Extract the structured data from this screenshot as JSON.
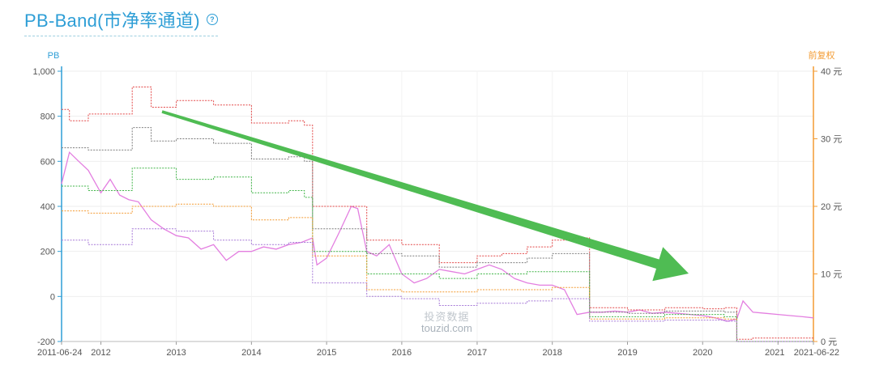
{
  "title": "PB-Band(市净率通道)",
  "help_icon": "question-circle-icon",
  "watermark": {
    "line1": "投资数据",
    "line2": "touzid.com"
  },
  "colors": {
    "left_axis": "#2e9ed6",
    "right_axis": "#f39c34",
    "pb_line": "#e37ee0",
    "band_red": "#e34a4a",
    "band_gray": "#7e7e7e",
    "band_green": "#42b64a",
    "band_orange": "#f39c34",
    "band_purple": "#a77ad8",
    "arrow": "#46b84a"
  },
  "chart_data": {
    "type": "line",
    "title": "PB-Band(市净率通道)",
    "y_left": {
      "label": "PB",
      "range": [
        -200,
        1000
      ],
      "ticks": [
        "-200",
        "0",
        "200",
        "400",
        "600",
        "800",
        "1,000"
      ]
    },
    "y_right": {
      "label": "前复权",
      "range": [
        0,
        40
      ],
      "ticks": [
        "0 元",
        "10 元",
        "20 元",
        "30 元",
        "40 元"
      ]
    },
    "x_range": [
      "2011-06-24",
      "2021-06-22"
    ],
    "x_ticks": [
      "2011-06-24",
      "2012",
      "2013",
      "2014",
      "2015",
      "2016",
      "2017",
      "2018",
      "2019",
      "2020",
      "2021",
      "2021-06-22"
    ],
    "grid": true,
    "annotation": "green arrow, downward trend from early 2013 to early 2020",
    "series": [
      {
        "color": "pink",
        "x": [
          "2011-06-24",
          "2011-08-01",
          "2011-09-15",
          "2011-11-01",
          "2012-01-01",
          "2012-02-15",
          "2012-04-01",
          "2012-05-15",
          "2012-07-01",
          "2012-09-01",
          "2012-11-01",
          "2013-01-01",
          "2013-03-01",
          "2013-05-01",
          "2013-07-01",
          "2013-09-01",
          "2013-11-01",
          "2014-01-01",
          "2014-03-01",
          "2014-05-01",
          "2014-07-01",
          "2014-09-01",
          "2014-10-25",
          "2014-11-15",
          "2015-01-01",
          "2015-03-01",
          "2015-05-01",
          "2015-06-01",
          "2015-07-15",
          "2015-09-01",
          "2015-11-01",
          "2016-01-01",
          "2016-03-01",
          "2016-05-01",
          "2016-07-01",
          "2016-09-01",
          "2016-11-01",
          "2017-01-01",
          "2017-03-01",
          "2017-05-01",
          "2017-07-01",
          "2017-09-01",
          "2017-11-01",
          "2018-01-01",
          "2018-03-01",
          "2018-05-01",
          "2018-07-01",
          "2018-09-01",
          "2018-11-01",
          "2019-01-01",
          "2019-03-01",
          "2019-05-01",
          "2019-07-01",
          "2019-09-01",
          "2019-11-01",
          "2020-01-01",
          "2020-03-01",
          "2020-05-01",
          "2020-06-15",
          "2020-07-15",
          "2020-09-01",
          "2020-11-01",
          "2021-01-01",
          "2021-03-01",
          "2021-05-01",
          "2021-06-22"
        ],
        "values": [
          500,
          640,
          600,
          560,
          460,
          520,
          450,
          430,
          420,
          340,
          300,
          270,
          260,
          210,
          230,
          160,
          200,
          200,
          220,
          210,
          230,
          240,
          260,
          140,
          170,
          280,
          400,
          390,
          200,
          180,
          230,
          100,
          60,
          80,
          120,
          110,
          100,
          120,
          140,
          120,
          80,
          60,
          50,
          50,
          30,
          -80,
          -70,
          -70,
          -65,
          -70,
          -60,
          -75,
          -70,
          -75,
          -80,
          -85,
          -95,
          -110,
          -100,
          -20,
          -70,
          -75,
          -80,
          -85,
          -90,
          -95
        ]
      },
      {
        "color": "red",
        "x": [
          "2011-06-24",
          "2011-08-01",
          "2011-11-01",
          "2012-06-01",
          "2012-09-01",
          "2013-01-01",
          "2013-07-01",
          "2014-01-01",
          "2014-07-01",
          "2014-09-15",
          "2014-10-25",
          "2015-03-01",
          "2015-07-15",
          "2016-01-01",
          "2016-07-01",
          "2017-01-01",
          "2017-05-01",
          "2017-09-01",
          "2018-01-01",
          "2018-04-15",
          "2018-07-01",
          "2019-01-01",
          "2019-07-01",
          "2020-01-01",
          "2020-04-15",
          "2020-06-15",
          "2020-09-01",
          "2021-06-22"
        ],
        "values": [
          830,
          780,
          810,
          930,
          840,
          870,
          850,
          770,
          780,
          760,
          400,
          400,
          250,
          230,
          150,
          180,
          190,
          220,
          250,
          260,
          -50,
          -60,
          -50,
          -55,
          -50,
          -190,
          -185,
          -190
        ]
      },
      {
        "color": "gray",
        "x": [
          "2011-06-24",
          "2011-11-01",
          "2012-06-01",
          "2012-09-01",
          "2013-01-01",
          "2013-07-01",
          "2014-01-01",
          "2014-07-01",
          "2014-09-15",
          "2014-10-25",
          "2015-07-15",
          "2016-01-01",
          "2016-07-01",
          "2017-01-01",
          "2017-09-01",
          "2018-01-01",
          "2018-04-15",
          "2018-07-01",
          "2019-01-01",
          "2019-07-01",
          "2020-04-15",
          "2020-06-15",
          "2021-06-22"
        ],
        "values": [
          660,
          650,
          750,
          690,
          700,
          680,
          610,
          620,
          600,
          300,
          190,
          180,
          130,
          150,
          170,
          190,
          190,
          -70,
          -75,
          -65,
          -70,
          -200,
          -200
        ]
      },
      {
        "color": "green",
        "x": [
          "2011-06-24",
          "2011-11-01",
          "2012-06-01",
          "2013-01-01",
          "2013-07-01",
          "2014-01-01",
          "2014-07-01",
          "2014-09-15",
          "2014-10-25",
          "2015-07-15",
          "2016-01-01",
          "2016-07-01",
          "2017-01-01",
          "2017-09-01",
          "2018-01-01",
          "2018-04-15",
          "2018-07-01",
          "2019-01-01",
          "2019-07-01",
          "2020-04-15",
          "2020-06-15",
          "2021-06-22"
        ],
        "values": [
          490,
          470,
          570,
          520,
          530,
          460,
          470,
          440,
          200,
          100,
          100,
          80,
          100,
          110,
          110,
          110,
          -90,
          -90,
          -80,
          -90,
          -200,
          -200
        ]
      },
      {
        "color": "orange",
        "x": [
          "2011-06-24",
          "2011-11-01",
          "2012-06-01",
          "2013-01-01",
          "2013-07-01",
          "2014-01-01",
          "2014-07-01",
          "2014-10-25",
          "2015-07-15",
          "2016-01-01",
          "2016-07-01",
          "2017-01-01",
          "2017-09-01",
          "2018-01-01",
          "2018-04-15",
          "2018-07-01",
          "2019-01-01",
          "2019-07-01",
          "2020-04-15",
          "2020-06-15",
          "2021-06-22"
        ],
        "values": [
          380,
          370,
          400,
          410,
          400,
          340,
          350,
          180,
          30,
          20,
          20,
          30,
          30,
          40,
          40,
          -100,
          -100,
          -95,
          -100,
          -200,
          -200
        ]
      },
      {
        "color": "purple",
        "x": [
          "2011-06-24",
          "2011-11-01",
          "2012-06-01",
          "2013-01-01",
          "2013-07-01",
          "2014-01-01",
          "2014-07-01",
          "2014-10-25",
          "2015-07-15",
          "2016-01-01",
          "2016-07-01",
          "2017-01-01",
          "2017-09-01",
          "2018-01-01",
          "2018-04-15",
          "2018-07-01",
          "2019-01-01",
          "2019-07-01",
          "2020-04-15",
          "2020-06-15",
          "2021-06-22"
        ],
        "values": [
          250,
          230,
          300,
          290,
          250,
          230,
          240,
          60,
          0,
          -10,
          -40,
          -30,
          -20,
          -10,
          -10,
          -110,
          -110,
          -105,
          -110,
          -200,
          -200
        ]
      }
    ]
  }
}
